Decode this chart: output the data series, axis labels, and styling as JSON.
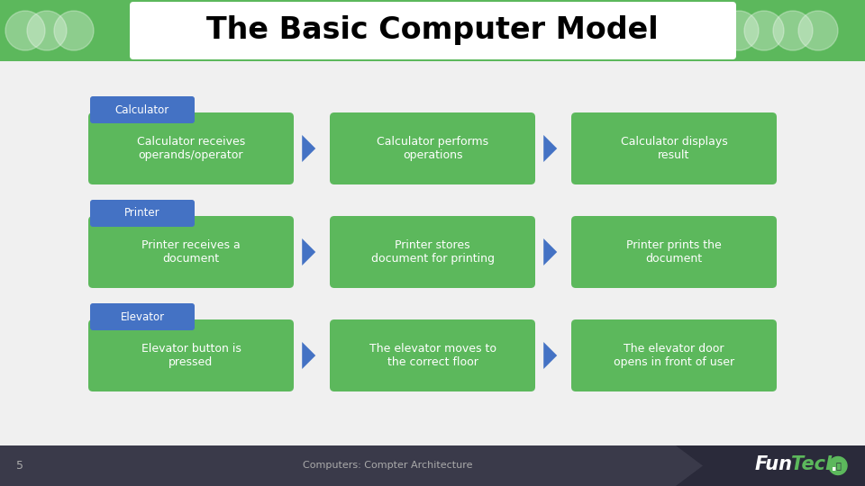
{
  "title": "The Basic Computer Model",
  "title_font": "Courier New",
  "title_fontsize": 24,
  "bg_color": "#f0f0f0",
  "header_bg": "#5cb85c",
  "footer_bg": "#3a3a4a",
  "footer_text": "Computers: Compter Architecture",
  "footer_page": "5",
  "green_box_color": "#5cb85c",
  "blue_label_color": "#4472c4",
  "arrow_color": "#4472c4",
  "text_color": "#ffffff",
  "rows": [
    {
      "label": "Calculator",
      "boxes": [
        "Calculator receives\noperands/operator",
        "Calculator performs\noperations",
        "Calculator displays\nresult"
      ]
    },
    {
      "label": "Printer",
      "boxes": [
        "Printer receives a\ndocument",
        "Printer stores\ndocument for printing",
        "Printer prints the\ndocument"
      ]
    },
    {
      "label": "Elevator",
      "boxes": [
        "Elevator button is\npressed",
        "The elevator moves to\nthe correct floor",
        "The elevator door\nopens in front of user"
      ]
    }
  ]
}
